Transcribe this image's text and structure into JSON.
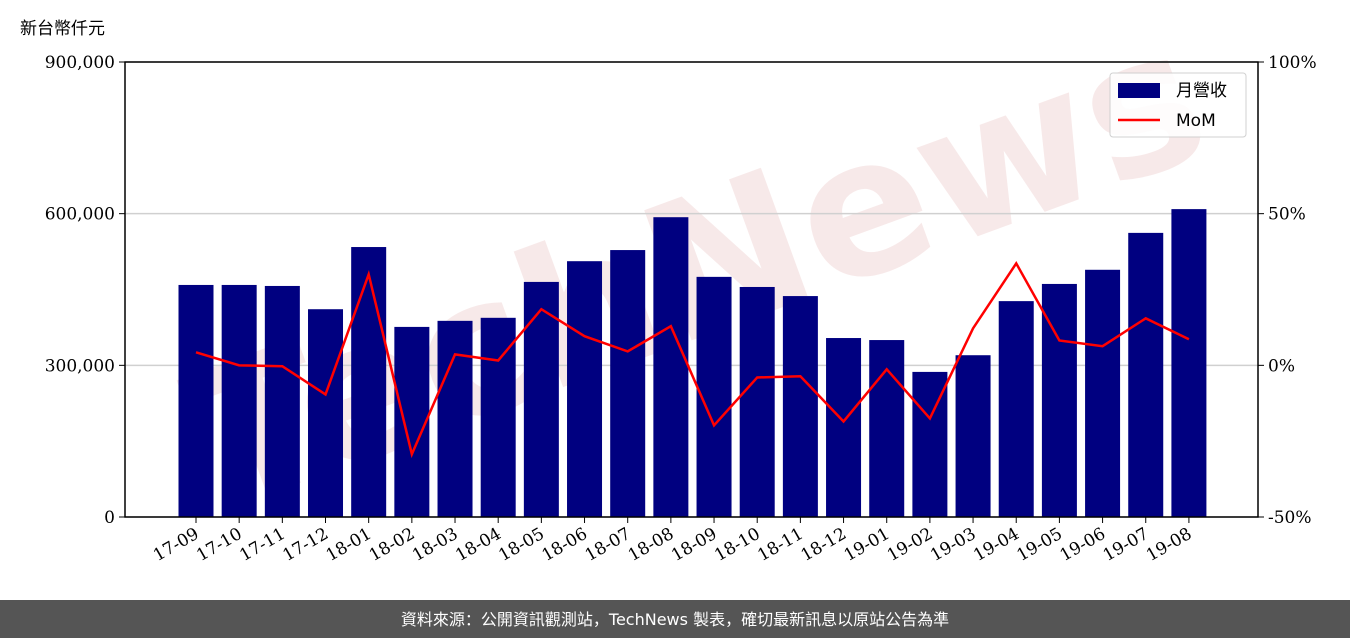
{
  "chart_data": {
    "type": "bar-line",
    "y_label": "新台幣仟元",
    "categories": [
      "17-09",
      "17-10",
      "17-11",
      "17-12",
      "18-01",
      "18-02",
      "18-03",
      "18-04",
      "18-05",
      "18-06",
      "18-07",
      "18-08",
      "18-09",
      "18-10",
      "18-11",
      "18-12",
      "19-01",
      "19-02",
      "19-03",
      "19-04",
      "19-05",
      "19-06",
      "19-07",
      "19-08"
    ],
    "series": [
      {
        "name": "月營收",
        "type": "bar",
        "color": "#000080",
        "values": [
          459000,
          459000,
          457000,
          411000,
          534000,
          376000,
          388000,
          394000,
          465000,
          506000,
          528000,
          593000,
          475000,
          455000,
          437000,
          354000,
          350000,
          287000,
          320000,
          427000,
          461000,
          489000,
          562000,
          609000
        ]
      },
      {
        "name": "MoM",
        "type": "line",
        "axis": "y2",
        "color": "#ff0000",
        "values": [
          4.3,
          0,
          -0.3,
          -9.6,
          30,
          -29.3,
          3.6,
          1.6,
          18.5,
          9.6,
          4.6,
          12.9,
          -19.8,
          -4,
          -3.6,
          -18.5,
          -1.3,
          -17.5,
          12.2,
          33.6,
          8.2,
          6.3,
          15.5,
          8.6
        ]
      }
    ],
    "ylim": [
      0,
      900000
    ],
    "yticks": [
      0,
      {
        "value": 300000,
        "label": "300,000"
      },
      {
        "value": 600000,
        "label": "600,000"
      },
      {
        "value": 900000,
        "label": "900,000"
      }
    ],
    "y2lim": [
      -50,
      100
    ],
    "y2ticks": [
      {
        "value": -50,
        "label": "-50%"
      },
      {
        "value": 0,
        "label": "0%"
      },
      {
        "value": 50,
        "label": "50%"
      },
      {
        "value": 100,
        "label": "100%"
      }
    ],
    "grid": true,
    "legend": "upper right"
  },
  "watermark": "TechNews",
  "footer": "資料來源：公開資訊觀測站，TechNews 製表，確切最新訊息以原站公告為準"
}
